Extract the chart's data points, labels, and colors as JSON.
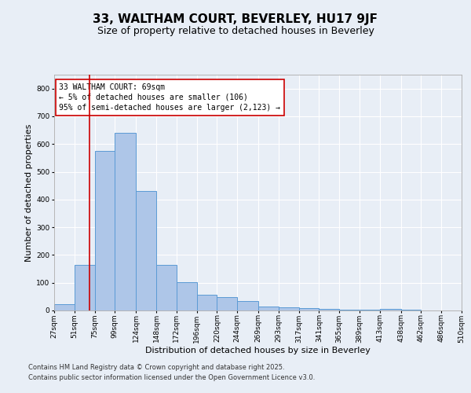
{
  "title1": "33, WALTHAM COURT, BEVERLEY, HU17 9JF",
  "title2": "Size of property relative to detached houses in Beverley",
  "xlabel": "Distribution of detached houses by size in Beverley",
  "ylabel": "Number of detached properties",
  "bins": [
    27,
    51,
    75,
    99,
    124,
    148,
    172,
    196,
    220,
    244,
    269,
    293,
    317,
    341,
    365,
    389,
    413,
    438,
    462,
    486,
    510
  ],
  "bar_heights": [
    22,
    165,
    575,
    640,
    430,
    163,
    102,
    57,
    47,
    35,
    15,
    12,
    9,
    7,
    4,
    4,
    5,
    2,
    1,
    0,
    1
  ],
  "bar_color": "#aec6e8",
  "bar_edge_color": "#5b9bd5",
  "vline_x": 69,
  "vline_color": "#cc0000",
  "annotation_line1": "33 WALTHAM COURT: 69sqm",
  "annotation_line2": "← 5% of detached houses are smaller (106)",
  "annotation_line3": "95% of semi-detached houses are larger (2,123) →",
  "annotation_box_color": "#ffffff",
  "annotation_box_edge_color": "#cc0000",
  "ylim": [
    0,
    850
  ],
  "yticks": [
    0,
    100,
    200,
    300,
    400,
    500,
    600,
    700,
    800
  ],
  "background_color": "#e8eef6",
  "plot_background_color": "#e8eef6",
  "grid_color": "#ffffff",
  "footer_line1": "Contains HM Land Registry data © Crown copyright and database right 2025.",
  "footer_line2": "Contains public sector information licensed under the Open Government Licence v3.0.",
  "title1_fontsize": 11,
  "title2_fontsize": 9,
  "axis_label_fontsize": 8,
  "tick_fontsize": 6.5,
  "annotation_fontsize": 7,
  "footer_fontsize": 6
}
